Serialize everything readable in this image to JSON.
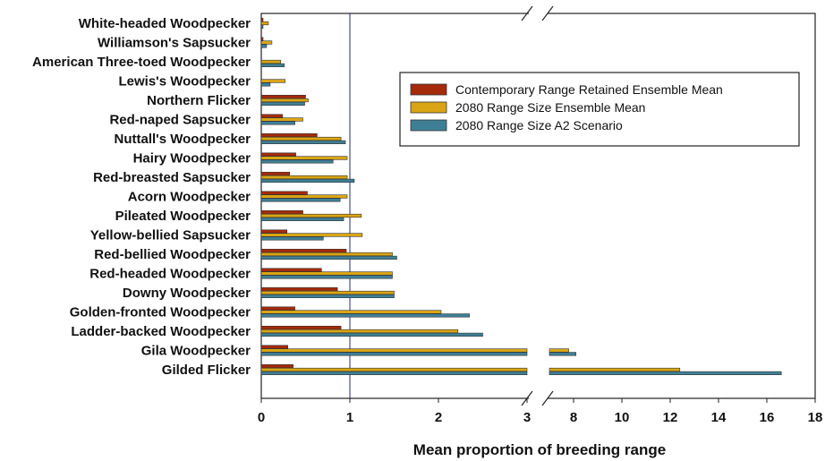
{
  "chart_data": {
    "type": "bar",
    "orientation": "horizontal",
    "categories": [
      "White-headed Woodpecker",
      "Williamson's Sapsucker",
      "American Three-toed Woodpecker",
      "Lewis's Woodpecker",
      "Northern Flicker",
      "Red-naped Sapsucker",
      "Nuttall's Woodpecker",
      "Hairy Woodpecker",
      "Red-breasted Sapsucker",
      "Acorn Woodpecker",
      "Pileated Woodpecker",
      "Yellow-bellied Sapsucker",
      "Red-bellied Woodpecker",
      "Red-headed Woodpecker",
      "Downy Woodpecker",
      "Golden-fronted Woodpecker",
      "Ladder-backed Woodpecker",
      "Gila Woodpecker",
      "Gilded Flicker"
    ],
    "series": [
      {
        "name": "Contemporary Range Retained Ensemble Mean",
        "color": "#A52A0A",
        "values": [
          0.02,
          0.02,
          0.0,
          0.0,
          0.5,
          0.24,
          0.63,
          0.39,
          0.32,
          0.52,
          0.47,
          0.29,
          0.96,
          0.68,
          0.86,
          0.38,
          0.9,
          0.3,
          0.36
        ]
      },
      {
        "name": "2080 Range Size Ensemble Mean",
        "color": "#D9A514",
        "values": [
          0.08,
          0.12,
          0.22,
          0.27,
          0.53,
          0.47,
          0.9,
          0.97,
          0.97,
          0.97,
          1.13,
          1.14,
          1.48,
          1.48,
          1.5,
          2.03,
          2.22,
          7.8,
          12.4
        ]
      },
      {
        "name": "2080 Range Size A2 Scenario",
        "color": "#3F7F95",
        "values": [
          0.02,
          0.06,
          0.26,
          0.1,
          0.49,
          0.38,
          0.95,
          0.81,
          1.05,
          0.89,
          0.93,
          0.7,
          1.53,
          1.48,
          1.5,
          2.35,
          2.5,
          8.1,
          16.6
        ]
      }
    ],
    "xlabel": "Mean proportion of breeding range",
    "ylabel": "",
    "x_axis_break": {
      "lower_segment": [
        0,
        3
      ],
      "upper_segment": [
        7,
        18
      ]
    },
    "xticks_lower": [
      "0",
      "1",
      "2",
      "3"
    ],
    "xticks_upper": [
      "8",
      "10",
      "12",
      "14",
      "16",
      "18"
    ],
    "reference_line_x": 1,
    "legend_position": "upper-right",
    "grid": false
  }
}
